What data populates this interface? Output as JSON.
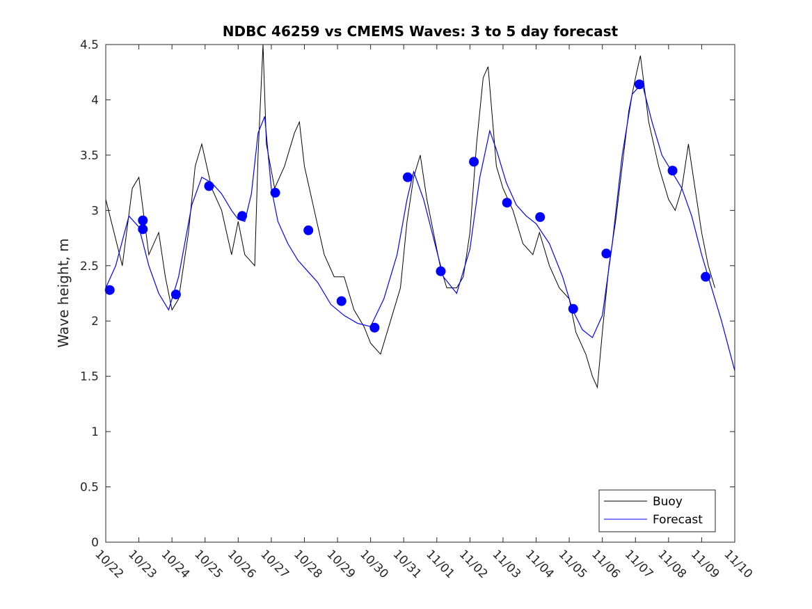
{
  "chart_data": {
    "type": "line",
    "title": "NDBC 46259 vs CMEMS Waves: 3 to 5 day forecast",
    "xlabel": "",
    "ylabel": "Wave height, m",
    "ylim": [
      0,
      4.5
    ],
    "xlim": [
      0,
      19
    ],
    "yticks": [
      0,
      0.5,
      1,
      1.5,
      2,
      2.5,
      3,
      3.5,
      4,
      4.5
    ],
    "ytick_labels": [
      "0",
      "0.5",
      "1",
      "1.5",
      "2",
      "2.5",
      "3",
      "3.5",
      "4",
      "4.5"
    ],
    "xtick_labels": [
      "10/22",
      "10/23",
      "10/24",
      "10/25",
      "10/26",
      "10/27",
      "10/28",
      "10/29",
      "10/30",
      "10/31",
      "11/01",
      "11/02",
      "11/03",
      "11/04",
      "11/05",
      "11/06",
      "11/07",
      "11/08",
      "11/09",
      "11/10"
    ],
    "grid": false,
    "legend": {
      "position": "bottom-right",
      "entries": [
        "Buoy",
        "Forecast"
      ]
    },
    "colors": {
      "buoy": "#000000",
      "forecast": "#0000ff",
      "markers": "#0000ff"
    },
    "series": [
      {
        "name": "Buoy",
        "points": [
          [
            0.0,
            3.1
          ],
          [
            0.5,
            2.5
          ],
          [
            0.8,
            3.2
          ],
          [
            1.0,
            3.3
          ],
          [
            1.3,
            2.6
          ],
          [
            1.6,
            2.8
          ],
          [
            1.8,
            2.4
          ],
          [
            2.0,
            2.1
          ],
          [
            2.2,
            2.2
          ],
          [
            2.5,
            2.8
          ],
          [
            2.7,
            3.4
          ],
          [
            2.9,
            3.6
          ],
          [
            3.2,
            3.2
          ],
          [
            3.5,
            3.0
          ],
          [
            3.8,
            2.6
          ],
          [
            4.0,
            2.9
          ],
          [
            4.2,
            2.6
          ],
          [
            4.5,
            2.5
          ],
          [
            4.6,
            3.5
          ],
          [
            4.75,
            4.5
          ],
          [
            4.85,
            3.6
          ],
          [
            5.1,
            3.2
          ],
          [
            5.4,
            3.4
          ],
          [
            5.7,
            3.7
          ],
          [
            5.85,
            3.8
          ],
          [
            6.0,
            3.4
          ],
          [
            6.3,
            3.0
          ],
          [
            6.6,
            2.6
          ],
          [
            6.9,
            2.4
          ],
          [
            7.2,
            2.4
          ],
          [
            7.5,
            2.1
          ],
          [
            7.8,
            1.95
          ],
          [
            8.0,
            1.8
          ],
          [
            8.3,
            1.7
          ],
          [
            8.6,
            2.0
          ],
          [
            8.9,
            2.3
          ],
          [
            9.1,
            2.9
          ],
          [
            9.3,
            3.3
          ],
          [
            9.5,
            3.5
          ],
          [
            9.7,
            3.1
          ],
          [
            9.9,
            2.8
          ],
          [
            10.1,
            2.5
          ],
          [
            10.3,
            2.3
          ],
          [
            10.6,
            2.3
          ],
          [
            10.8,
            2.4
          ],
          [
            11.0,
            2.8
          ],
          [
            11.2,
            3.6
          ],
          [
            11.4,
            4.2
          ],
          [
            11.55,
            4.3
          ],
          [
            11.8,
            3.4
          ],
          [
            12.0,
            3.2
          ],
          [
            12.3,
            3.0
          ],
          [
            12.6,
            2.7
          ],
          [
            12.9,
            2.6
          ],
          [
            13.1,
            2.8
          ],
          [
            13.4,
            2.5
          ],
          [
            13.7,
            2.3
          ],
          [
            14.0,
            2.2
          ],
          [
            14.2,
            1.9
          ],
          [
            14.5,
            1.7
          ],
          [
            14.7,
            1.5
          ],
          [
            14.85,
            1.4
          ],
          [
            15.0,
            1.9
          ],
          [
            15.2,
            2.5
          ],
          [
            15.4,
            2.9
          ],
          [
            15.6,
            3.4
          ],
          [
            15.8,
            3.9
          ],
          [
            16.0,
            4.2
          ],
          [
            16.15,
            4.4
          ],
          [
            16.4,
            3.8
          ],
          [
            16.7,
            3.4
          ],
          [
            17.0,
            3.1
          ],
          [
            17.2,
            3.0
          ],
          [
            17.4,
            3.2
          ],
          [
            17.6,
            3.6
          ],
          [
            17.8,
            3.2
          ],
          [
            18.0,
            2.8
          ],
          [
            18.2,
            2.5
          ],
          [
            18.4,
            2.3
          ]
        ]
      },
      {
        "name": "Forecast",
        "points": [
          [
            0.0,
            2.3
          ],
          [
            0.3,
            2.5
          ],
          [
            0.7,
            2.95
          ],
          [
            1.0,
            2.85
          ],
          [
            1.3,
            2.5
          ],
          [
            1.6,
            2.25
          ],
          [
            1.9,
            2.1
          ],
          [
            2.2,
            2.4
          ],
          [
            2.6,
            3.05
          ],
          [
            2.9,
            3.3
          ],
          [
            3.2,
            3.25
          ],
          [
            3.5,
            3.15
          ],
          [
            3.8,
            3.0
          ],
          [
            4.0,
            2.92
          ],
          [
            4.2,
            2.9
          ],
          [
            4.4,
            3.15
          ],
          [
            4.6,
            3.7
          ],
          [
            4.8,
            3.85
          ],
          [
            5.0,
            3.2
          ],
          [
            5.2,
            2.9
          ],
          [
            5.5,
            2.7
          ],
          [
            5.8,
            2.55
          ],
          [
            6.1,
            2.45
          ],
          [
            6.4,
            2.35
          ],
          [
            6.8,
            2.15
          ],
          [
            7.2,
            2.05
          ],
          [
            7.6,
            1.98
          ],
          [
            8.0,
            1.95
          ],
          [
            8.4,
            2.2
          ],
          [
            8.8,
            2.6
          ],
          [
            9.1,
            3.1
          ],
          [
            9.3,
            3.35
          ],
          [
            9.6,
            3.1
          ],
          [
            9.9,
            2.75
          ],
          [
            10.2,
            2.4
          ],
          [
            10.6,
            2.25
          ],
          [
            11.0,
            2.65
          ],
          [
            11.3,
            3.3
          ],
          [
            11.6,
            3.72
          ],
          [
            11.8,
            3.55
          ],
          [
            12.1,
            3.25
          ],
          [
            12.4,
            3.05
          ],
          [
            12.7,
            2.95
          ],
          [
            13.0,
            2.88
          ],
          [
            13.4,
            2.7
          ],
          [
            13.8,
            2.4
          ],
          [
            14.1,
            2.1
          ],
          [
            14.4,
            1.92
          ],
          [
            14.7,
            1.85
          ],
          [
            15.0,
            2.05
          ],
          [
            15.3,
            2.7
          ],
          [
            15.6,
            3.5
          ],
          [
            15.9,
            4.05
          ],
          [
            16.2,
            4.15
          ],
          [
            16.5,
            3.8
          ],
          [
            16.8,
            3.5
          ],
          [
            17.1,
            3.35
          ],
          [
            17.4,
            3.2
          ],
          [
            17.7,
            2.95
          ],
          [
            18.0,
            2.6
          ],
          [
            18.3,
            2.3
          ],
          [
            18.6,
            2.0
          ],
          [
            19.0,
            1.55
          ]
        ]
      },
      {
        "name": "Forecast markers",
        "points": [
          [
            0.12,
            2.28
          ],
          [
            1.12,
            2.91
          ],
          [
            1.12,
            2.83
          ],
          [
            2.12,
            2.24
          ],
          [
            3.12,
            3.22
          ],
          [
            4.12,
            2.95
          ],
          [
            5.12,
            3.16
          ],
          [
            6.12,
            2.82
          ],
          [
            7.12,
            2.18
          ],
          [
            8.12,
            1.94
          ],
          [
            9.12,
            3.3
          ],
          [
            10.12,
            2.45
          ],
          [
            11.12,
            3.44
          ],
          [
            12.12,
            3.07
          ],
          [
            13.12,
            2.94
          ],
          [
            14.12,
            2.11
          ],
          [
            15.12,
            2.61
          ],
          [
            16.12,
            4.14
          ],
          [
            17.12,
            3.36
          ],
          [
            18.12,
            2.4
          ]
        ]
      }
    ]
  }
}
